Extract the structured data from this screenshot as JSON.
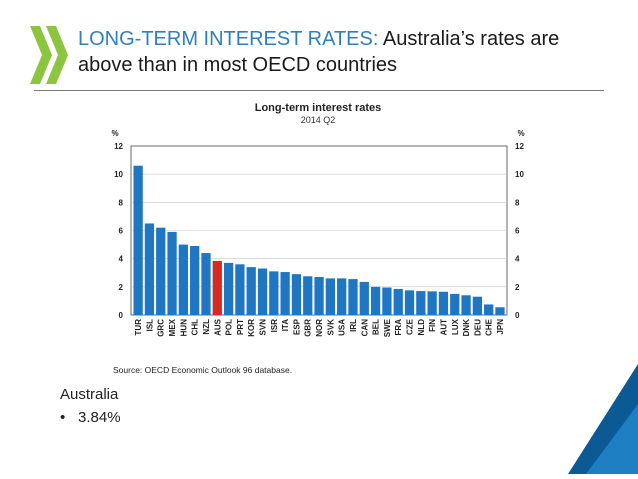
{
  "slide": {
    "title_highlight": "LONG-TERM INTEREST RATES: ",
    "title_rest": "Australia’s rates are above than in most OECD countries"
  },
  "bullets": {
    "country": "Australia",
    "marker": "•",
    "value": "3.84%"
  },
  "colors": {
    "title_accent": "#2f7fba",
    "bar": "#1f77c4",
    "bar_highlight": "#d62a24",
    "logo": "#8cc63f",
    "corner_dark": "#0b5a96",
    "corner_light": "#1d7fc1"
  },
  "chart_data": {
    "type": "bar",
    "title": "Long-term interest rates",
    "subtitle": "2014 Q2",
    "unit_left": "%",
    "unit_right": "%",
    "ylim": [
      0,
      12
    ],
    "yticks": [
      0,
      2,
      4,
      6,
      8,
      10,
      12
    ],
    "highlight": "AUS",
    "categories": [
      "TUR",
      "ISL",
      "GRC",
      "MEX",
      "HUN",
      "CHL",
      "NZL",
      "AUS",
      "POL",
      "PRT",
      "KOR",
      "SVN",
      "ISR",
      "ITA",
      "ESP",
      "GBR",
      "NOR",
      "SVK",
      "USA",
      "IRL",
      "CAN",
      "BEL",
      "SWE",
      "FRA",
      "CZE",
      "NLD",
      "FIN",
      "AUT",
      "LUX",
      "DNK",
      "DEU",
      "CHE",
      "JPN"
    ],
    "values": [
      10.6,
      6.5,
      6.2,
      5.9,
      5.0,
      4.9,
      4.4,
      3.84,
      3.7,
      3.6,
      3.4,
      3.3,
      3.1,
      3.05,
      2.9,
      2.75,
      2.7,
      2.6,
      2.6,
      2.55,
      2.35,
      2.0,
      1.95,
      1.85,
      1.75,
      1.7,
      1.68,
      1.65,
      1.5,
      1.4,
      1.3,
      0.75,
      0.55
    ],
    "source": "Source: OECD Economic Outlook 96 database."
  }
}
